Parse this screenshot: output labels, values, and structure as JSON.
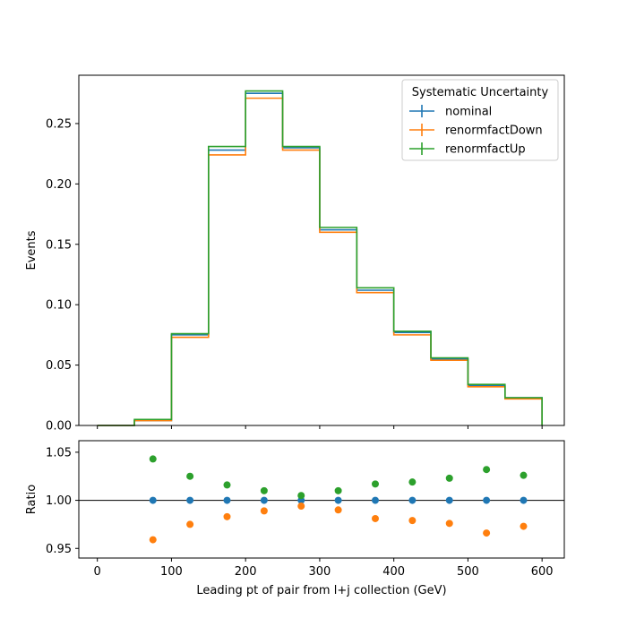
{
  "chart_data": {
    "type": "step",
    "x_bin_edges": [
      0,
      50,
      100,
      150,
      200,
      250,
      300,
      350,
      400,
      450,
      500,
      550,
      600
    ],
    "xlabel": "Leading pt of pair from l+j collection (GeV)",
    "xlim": [
      -25,
      630
    ],
    "xticks": [
      0,
      100,
      200,
      300,
      400,
      500,
      600
    ],
    "top": {
      "ylabel": "Events",
      "ylim": [
        0,
        0.29
      ],
      "yticks": [
        0.0,
        0.05,
        0.1,
        0.15,
        0.2,
        0.25
      ],
      "ytick_labels": [
        "0.00",
        "0.05",
        "0.10",
        "0.15",
        "0.20",
        "0.25"
      ],
      "series": [
        {
          "name": "nominal",
          "color": "#1f77b4",
          "values": [
            0.0,
            0.004,
            0.075,
            0.228,
            0.275,
            0.23,
            0.162,
            0.112,
            0.077,
            0.055,
            0.033,
            0.023
          ]
        },
        {
          "name": "renormfactDown",
          "color": "#ff7f0e",
          "values": [
            0.0,
            0.004,
            0.073,
            0.224,
            0.271,
            0.228,
            0.16,
            0.11,
            0.075,
            0.054,
            0.032,
            0.022
          ]
        },
        {
          "name": "renormfactUp",
          "color": "#2ca02c",
          "values": [
            0.0,
            0.005,
            0.076,
            0.231,
            0.277,
            0.231,
            0.164,
            0.114,
            0.078,
            0.056,
            0.034,
            0.023
          ]
        }
      ]
    },
    "bottom": {
      "ylabel": "Ratio",
      "ylim": [
        0.94,
        1.062
      ],
      "yticks": [
        0.95,
        1.0,
        1.05
      ],
      "ytick_labels": [
        "0.95",
        "1.00",
        "1.05"
      ],
      "reference_line": 1.0,
      "x_points": [
        75,
        125,
        175,
        225,
        275,
        325,
        375,
        425,
        475,
        525,
        575
      ],
      "series": [
        {
          "name": "nominal",
          "color": "#1f77b4",
          "values": [
            1.0,
            1.0,
            1.0,
            1.0,
            1.0,
            1.0,
            1.0,
            1.0,
            1.0,
            1.0,
            1.0
          ]
        },
        {
          "name": "renormfactDown",
          "color": "#ff7f0e",
          "values": [
            0.959,
            0.975,
            0.983,
            0.989,
            0.994,
            0.99,
            0.981,
            0.979,
            0.976,
            0.966,
            0.973
          ]
        },
        {
          "name": "renormfactUp",
          "color": "#2ca02c",
          "values": [
            1.043,
            1.025,
            1.016,
            1.01,
            1.005,
            1.01,
            1.017,
            1.019,
            1.023,
            1.032,
            1.026
          ]
        }
      ]
    },
    "legend": {
      "title": "Systematic Uncertainty",
      "placement": "top-right",
      "entries": [
        "nominal",
        "renormfactDown",
        "renormfactUp"
      ]
    },
    "grid": false
  }
}
